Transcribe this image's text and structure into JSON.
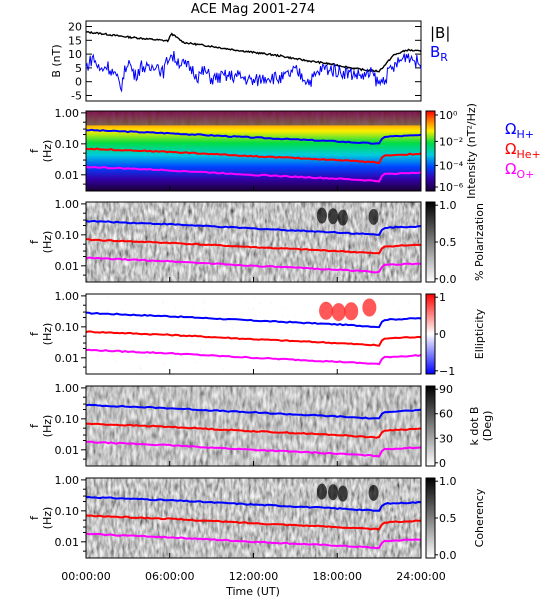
{
  "chart_data": [
    {
      "type": "line",
      "title": "ACE Mag 2001-274",
      "ylabel": "B (nT)",
      "ylim": [
        -7,
        22
      ],
      "yticks": [
        -5,
        0,
        5,
        10,
        15,
        20
      ],
      "legend": "right",
      "series": [
        {
          "name": "|B|",
          "color": "#000000",
          "x": [
            0,
            1,
            2,
            3,
            4,
            5,
            5.9,
            6.1,
            7,
            8,
            9,
            10,
            11,
            12,
            13,
            14,
            15,
            16,
            17,
            18,
            19,
            20,
            21,
            21.5,
            22,
            23,
            24
          ],
          "y": [
            18,
            17.5,
            16.8,
            16.2,
            15.7,
            15.2,
            14.8,
            17.5,
            14.2,
            13.5,
            12.8,
            12,
            11.3,
            10.6,
            10,
            9.3,
            8.3,
            7.5,
            6.8,
            6,
            5,
            4.2,
            3.8,
            6.5,
            9.5,
            11.5,
            11
          ]
        },
        {
          "name": "B_R",
          "label_main": "B",
          "label_sub": "R",
          "color": "#0000ff",
          "x": [
            0,
            0.5,
            1,
            1.5,
            2,
            2.5,
            3,
            3.5,
            4,
            4.5,
            5,
            5.5,
            6,
            6.5,
            7,
            7.5,
            8,
            8.5,
            9,
            10,
            11,
            12,
            13,
            14,
            15,
            16,
            17,
            18,
            19,
            20,
            20.5,
            21,
            21.5,
            22,
            23,
            24
          ],
          "y": [
            5,
            9,
            4,
            6,
            3,
            -2,
            8,
            2,
            6,
            4,
            7,
            3,
            10,
            8,
            6,
            5,
            2,
            4,
            1,
            2,
            2,
            0,
            2,
            1,
            4,
            0,
            5,
            4,
            3,
            2,
            3,
            -1,
            2,
            5,
            10,
            6
          ]
        }
      ]
    },
    {
      "type": "heatmap",
      "ylabel": "f (Hz)",
      "yscale": "log",
      "yticks": [
        "0.01",
        "0.10",
        "1.00"
      ],
      "colorbar": {
        "label": "Intensity (nT²/Hz)",
        "ticks": [
          "10⁰",
          "10⁻²",
          "10⁻⁴",
          "10⁻⁶"
        ],
        "scale": "rainbow"
      },
      "series": [
        {
          "name": "Ω_H+",
          "label_main": "Ω",
          "label_sub": "H+",
          "color": "#0000ff",
          "x": [
            0,
            6,
            12,
            18,
            21,
            21.3,
            24
          ],
          "y": [
            0.28,
            0.22,
            0.16,
            0.12,
            0.1,
            0.17,
            0.19
          ]
        },
        {
          "name": "Ω_He+",
          "label_main": "Ω",
          "label_sub": "He+",
          "color": "#ff0000",
          "x": [
            0,
            6,
            12,
            18,
            21,
            21.3,
            24
          ],
          "y": [
            0.07,
            0.055,
            0.04,
            0.03,
            0.025,
            0.042,
            0.048
          ]
        },
        {
          "name": "Ω_O+",
          "label_main": "Ω",
          "label_sub": "O+",
          "color": "#ff00ff",
          "x": [
            0,
            6,
            12,
            18,
            21,
            21.3,
            24
          ],
          "y": [
            0.018,
            0.014,
            0.01,
            0.0075,
            0.0063,
            0.0105,
            0.012
          ]
        }
      ]
    },
    {
      "type": "heatmap",
      "ylabel": "f (Hz)",
      "yscale": "log",
      "yticks": [
        "0.01",
        "0.10",
        "1.00"
      ],
      "colorbar": {
        "label": "% Polarization",
        "ticks": [
          "1.0",
          "0.5",
          "0.0"
        ],
        "scale": "gray"
      }
    },
    {
      "type": "heatmap",
      "ylabel": "f (Hz)",
      "yscale": "log",
      "yticks": [
        "0.01",
        "0.10",
        "1.00"
      ],
      "colorbar": {
        "label": "Ellipticity",
        "ticks": [
          "1",
          "0",
          "−1"
        ],
        "scale": "bluered"
      }
    },
    {
      "type": "heatmap",
      "ylabel": "f (Hz)",
      "yscale": "log",
      "yticks": [
        "0.01",
        "0.10",
        "1.00"
      ],
      "colorbar": {
        "label_lines": [
          "k dot B",
          "(Deg)"
        ],
        "ticks": [
          "90",
          "60",
          "30",
          "0"
        ],
        "scale": "gray"
      }
    },
    {
      "type": "heatmap",
      "ylabel": "f (Hz)",
      "yscale": "log",
      "yticks": [
        "0.01",
        "0.10",
        "1.00"
      ],
      "colorbar": {
        "label": "Coherency",
        "ticks": [
          "1.0",
          "0.5",
          "0.0"
        ],
        "scale": "gray"
      }
    }
  ],
  "xaxis": {
    "label": "Time (UT)",
    "ticks": [
      "00:00:00",
      "06:00:00",
      "12:00:00",
      "18:00:00",
      "24:00:00"
    ]
  }
}
